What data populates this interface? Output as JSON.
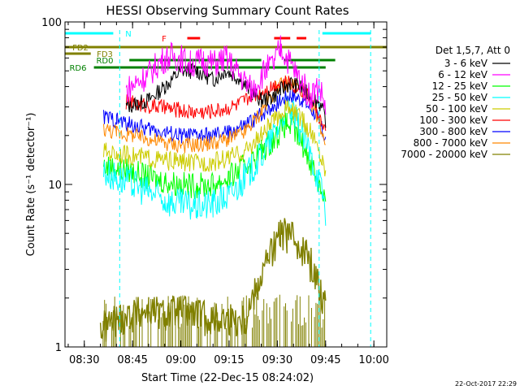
{
  "chart_data": {
    "type": "line",
    "title": "HESSI Observing Summary Count Rates",
    "xlabel": "Start Time (22-Dec-15 08:24:02)",
    "ylabel": "Count Rate (s⁻¹ detector⁻¹)",
    "footer_timestamp": "22-Oct-2017 22:29",
    "y_scale": "log",
    "ylim": [
      1,
      100
    ],
    "xlim": [
      "08:24",
      "10:04"
    ],
    "x_ticks": [
      "08:30",
      "08:45",
      "09:00",
      "09:15",
      "09:30",
      "09:45",
      "10:00"
    ],
    "y_ticks": [
      "1",
      "10",
      "100"
    ],
    "legend_title": "Det 1,5,7, Att 0",
    "legend_placement": "right",
    "series": [
      {
        "name": "3 - 6 keV",
        "color": "#000000",
        "x": [
          "08:35",
          "08:43",
          "08:43",
          "08:50",
          "08:55",
          "09:00",
          "09:05",
          "09:10",
          "09:14",
          "09:18",
          "09:22",
          "09:25",
          "09:28",
          "09:31",
          "09:34",
          "09:37",
          "09:40",
          "09:43",
          "09:45"
        ],
        "y": [
          null,
          null,
          30,
          33,
          40,
          50,
          50,
          44,
          50,
          45,
          37,
          33,
          34,
          38,
          42,
          40,
          35,
          32,
          25
        ]
      },
      {
        "name": "6 - 12 keV",
        "color": "#ff00ff",
        "x": [
          "08:43",
          "08:43",
          "08:50",
          "08:54",
          "08:57",
          "09:00",
          "09:03",
          "09:07",
          "09:10",
          "09:14",
          "09:18",
          "09:22",
          "09:26",
          "09:29",
          "09:31",
          "09:33",
          "09:36",
          "09:40",
          "09:43",
          "09:45"
        ],
        "y": [
          null,
          38,
          48,
          58,
          62,
          60,
          55,
          58,
          55,
          60,
          48,
          38,
          50,
          55,
          70,
          60,
          48,
          35,
          40,
          30
        ]
      },
      {
        "name": "12 - 25 keV",
        "color": "#00ff00",
        "x": [
          "08:36",
          "08:40",
          "08:45",
          "08:50",
          "08:55",
          "09:00",
          "09:05",
          "09:10",
          "09:15",
          "09:20",
          "09:25",
          "09:30",
          "09:33",
          "09:37",
          "09:41",
          "09:44",
          "09:45"
        ],
        "y": [
          13,
          12.5,
          12,
          11,
          10.5,
          10,
          9.8,
          10,
          11,
          13,
          16,
          20,
          24,
          19,
          13,
          9,
          8
        ]
      },
      {
        "name": "25 - 50 keV",
        "color": "#00ffff",
        "x": [
          "08:36",
          "08:40",
          "08:45",
          "08:50",
          "08:55",
          "09:00",
          "09:05",
          "09:10",
          "09:15",
          "09:20",
          "09:25",
          "09:30",
          "09:33",
          "09:37",
          "09:41",
          "09:44",
          "09:45"
        ],
        "y": [
          12,
          11,
          10,
          9,
          8,
          7.5,
          7.3,
          7.6,
          8.5,
          11,
          15,
          22,
          31,
          22,
          14,
          9,
          7
        ]
      },
      {
        "name": "50 - 100 keV",
        "color": "#cccc00",
        "x": [
          "08:36",
          "08:40",
          "08:45",
          "08:50",
          "08:55",
          "09:00",
          "09:05",
          "09:10",
          "09:15",
          "09:20",
          "09:25",
          "09:30",
          "09:33",
          "09:37",
          "09:41",
          "09:44",
          "09:45"
        ],
        "y": [
          16,
          15.5,
          15,
          14.5,
          14,
          13.8,
          13.5,
          13.8,
          14.5,
          16,
          20,
          26,
          30,
          26,
          20,
          14,
          12
        ]
      },
      {
        "name": "100 - 300 keV",
        "color": "#ff0000",
        "x": [
          "08:43",
          "08:48",
          "08:53",
          "08:58",
          "09:03",
          "09:08",
          "09:13",
          "09:18",
          "09:22",
          "09:26",
          "09:30",
          "09:34",
          "09:38",
          "09:42",
          "09:45"
        ],
        "y": [
          32,
          31,
          30,
          29,
          28,
          28,
          29,
          31,
          35,
          38,
          42,
          42,
          38,
          30,
          20
        ]
      },
      {
        "name": "300 - 800 keV",
        "color": "#0000ff",
        "x": [
          "08:36",
          "08:40",
          "08:45",
          "08:50",
          "08:55",
          "09:00",
          "09:05",
          "09:10",
          "09:15",
          "09:20",
          "09:25",
          "09:30",
          "09:34",
          "09:38",
          "09:42",
          "09:45"
        ],
        "y": [
          26,
          25,
          23,
          22,
          21,
          20,
          20,
          20,
          21,
          23,
          27,
          32,
          36,
          33,
          27,
          19
        ]
      },
      {
        "name": "800 - 7000 keV",
        "color": "#ff8800",
        "x": [
          "08:36",
          "08:40",
          "08:45",
          "08:50",
          "08:55",
          "09:00",
          "09:05",
          "09:10",
          "09:15",
          "09:20",
          "09:25",
          "09:30",
          "09:34",
          "09:38",
          "09:42",
          "09:45"
        ],
        "y": [
          22,
          21,
          20,
          19,
          18,
          17.5,
          17.5,
          18,
          19,
          21,
          28,
          40,
          42,
          38,
          28,
          18
        ]
      },
      {
        "name": "7000 - 20000 keV",
        "color": "#808000",
        "x": [
          "08:35",
          "08:40",
          "08:45",
          "08:50",
          "08:55",
          "09:00",
          "09:05",
          "09:10",
          "09:15",
          "09:20",
          "09:24",
          "09:27",
          "09:29",
          "09:31",
          "09:33",
          "09:36",
          "09:39",
          "09:42",
          "09:45"
        ],
        "y": [
          1.3,
          1.5,
          1.6,
          1.7,
          1.6,
          1.7,
          1.6,
          1.5,
          1.5,
          1.5,
          2.5,
          3.5,
          4.2,
          5,
          5,
          4.6,
          3.8,
          2.8,
          1.8
        ]
      }
    ],
    "flags": [
      {
        "label": "N",
        "color": "#00ffff",
        "segments": [
          [
            "08:24",
            "08:39"
          ],
          [
            "09:44",
            "09:59"
          ]
        ]
      },
      {
        "label": "F",
        "color": "#ff0000",
        "segments": [
          [
            "09:02",
            "09:06"
          ],
          [
            "09:29",
            "09:34"
          ],
          [
            "09:36",
            "09:39"
          ]
        ]
      },
      {
        "label": "FD2",
        "color": "#808000",
        "segments": [
          [
            "08:24",
            "10:04"
          ]
        ]
      },
      {
        "label": "FD3",
        "color": "#808000",
        "segments": [
          [
            "08:24",
            "08:32"
          ]
        ]
      },
      {
        "label": "RD0",
        "color": "#008000",
        "segments": [
          [
            "08:44",
            "09:25"
          ],
          [
            "09:32",
            "09:48"
          ]
        ]
      },
      {
        "label": "RD6",
        "color": "#008000",
        "segments": [
          [
            "08:33",
            "09:45"
          ]
        ]
      }
    ],
    "vertical_markers": {
      "color": "#00ffff",
      "times": [
        "08:41",
        "09:43",
        "09:59"
      ]
    },
    "grid": false
  }
}
